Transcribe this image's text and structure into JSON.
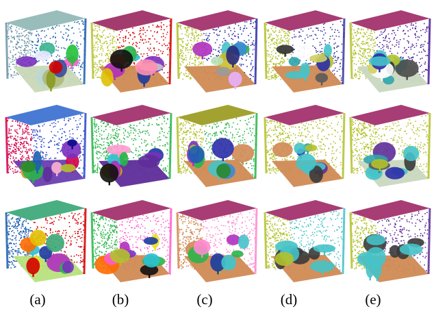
{
  "figure": {
    "captions": [
      "(a)",
      "(b)",
      "(c)",
      "(d)",
      "(e)"
    ],
    "rows": [
      [
        {
          "roof": "#8fb7b4",
          "left": "#6e93a7",
          "right": "#1c5fb0",
          "floor": "#c9d8b8",
          "segments": [
            "#b9d8d4",
            "#38b58f",
            "#ff5cc9",
            "#7a2fbf",
            "#22c03a",
            "#b0b87a",
            "#e8e8ff",
            "#3a4a9a",
            "#8a9a20",
            "#d10000"
          ]
        },
        {
          "roof": "#9c2a63",
          "left": "#b8c431",
          "right": "#d10000",
          "floor": "#cf8a52",
          "segments": [
            "#1c3aa0",
            "#2ec1d3",
            "#2ab54a",
            "#ff6a00",
            "#7a2fbf",
            "#c8c8c8",
            "#b02fbf",
            "#ff90b0",
            "#111111",
            "#e0c000"
          ]
        },
        {
          "roof": "#a02c68",
          "left": "#b3c12c",
          "right": "#2b2ca8",
          "floor": "#d08a54",
          "segments": [
            "#45c3c9",
            "#2ab54a",
            "#b02fbf",
            "#c8b82c",
            "#e8b0ff",
            "#3a8ad8",
            "#d4c440",
            "#9a9a9a",
            "#2a2a7a",
            "#b7e2b7"
          ]
        },
        {
          "roof": "#a02c68",
          "left": "#b3c12c",
          "right": "#3a3aa0",
          "floor": "#d08a54",
          "segments": [
            "#45c3c9",
            "#2ea5ad",
            "#5a5a5a",
            "#b3c12c",
            "#45c3c9",
            "#2b2ca8",
            "#ffffff",
            "#45c3c9",
            "#303030",
            "#d0d060"
          ]
        },
        {
          "roof": "#a02c68",
          "left": "#b3c12c",
          "right": "#4b1f9a",
          "floor": "#c9d8c0",
          "segments": [
            "#45c3c9",
            "#2ea5ad",
            "#4a4a4a",
            "#b3c12c",
            "#45c3c9",
            "#303030",
            "#ffffff",
            "#d0d060",
            "#2b2ca8",
            "#45c3c9"
          ]
        }
      ],
      [
        {
          "roof": "#3a6fd0",
          "left": "#d2004a",
          "right": "#2b48c8",
          "floor": "#6a3fb0",
          "segments": [
            "#d2004a",
            "#e09030",
            "#2ab54a",
            "#7a2fbf",
            "#1c5fb0",
            "#2a8a2a",
            "#ffb0d0",
            "#b3c12c",
            "#0a0a8a",
            "#5e2d9a"
          ]
        },
        {
          "roof": "#a02c68",
          "left": "#2ab54a",
          "right": "#2ab54a",
          "floor": "#5e2d9a",
          "segments": [
            "#b3c12c",
            "#2ec1d3",
            "#1c3aa0",
            "#7a2fbf",
            "#ff9ad0",
            "#2ab54a",
            "#d2a800",
            "#b02fbf",
            "#111111",
            "#5e2d9a"
          ]
        },
        {
          "roof": "#9a9a20",
          "left": "#b3c12c",
          "right": "#2ab54a",
          "floor": "#d08a54",
          "segments": [
            "#45c3c9",
            "#2ab54a",
            "#b02fbf",
            "#3a8ad8",
            "#7a2fbf",
            "#2a8a2a",
            "#d08a54",
            "#b3c12c",
            "#2b2ca8",
            "#1c5fb0"
          ]
        },
        {
          "roof": "#a02c68",
          "left": "#b3c12c",
          "right": "#b3c12c",
          "floor": "#d08a54",
          "segments": [
            "#5e2d9a",
            "#45c3c9",
            "#2ea5ad",
            "#b3c12c",
            "#2b2ca8",
            "#45c3c9",
            "#45c3c9",
            "#3a3a3a",
            "#45c3c9",
            "#d08a54"
          ]
        },
        {
          "roof": "#a02c68",
          "left": "#b3c12c",
          "right": "#b3c12c",
          "floor": "#c9d8c0",
          "segments": [
            "#5e2d9a",
            "#45c3c9",
            "#2ea5ad",
            "#3a3a3a",
            "#45c3c9",
            "#45c3c9",
            "#5a5a5a",
            "#45c3c9",
            "#b3c12c",
            "#2b2ca8"
          ]
        }
      ],
      [
        {
          "roof": "#3aa776",
          "left": "#1c5fb0",
          "right": "#d10000",
          "floor": "#b7e27c",
          "segments": [
            "#2ec1d3",
            "#b02fbf",
            "#e8e020",
            "#2ab54a",
            "#ff6a00",
            "#7a2fbf",
            "#1c3aa0",
            "#e0c000",
            "#d10000",
            "#3aa776"
          ]
        },
        {
          "roof": "#a02c68",
          "left": "#2ab54a",
          "right": "#ff5cc9",
          "floor": "#d08a54",
          "segments": [
            "#7a2fbf",
            "#ff6a00",
            "#e8e020",
            "#2ab54a",
            "#111111",
            "#1c3aa0",
            "#b02fbf",
            "#ff5cc9",
            "#b3c12c",
            "#2ec1d3"
          ]
        },
        {
          "roof": "#a02c68",
          "left": "#d08a54",
          "right": "#ff8ad0",
          "floor": "#d08a54",
          "segments": [
            "#45c3c9",
            "#2ab54a",
            "#b3c12c",
            "#b02fbf",
            "#1c3aa0",
            "#45c3c9",
            "#d08a54",
            "#2ab54a",
            "#ff8ad0",
            "#45c3c9"
          ]
        },
        {
          "roof": "#a02c68",
          "left": "#b3c12c",
          "right": "#45c3c9",
          "floor": "#d08a54",
          "segments": [
            "#45c3c9",
            "#3a3a3a",
            "#45c3c9",
            "#3a3a3a",
            "#45c3c9",
            "#3a3a3a",
            "#45c3c9",
            "#3a3a3a",
            "#45c3c9",
            "#b3c12c"
          ]
        },
        {
          "roof": "#a02c68",
          "left": "#b3c12c",
          "right": "#5e2d9a",
          "floor": "#d08a54",
          "segments": [
            "#45c3c9",
            "#3a3a3a",
            "#45c3c9",
            "#3a3a3a",
            "#45c3c9",
            "#3a3a3a",
            "#45c3c9",
            "#3a3a3a",
            "#45c3c9",
            "#45c3c9"
          ]
        }
      ]
    ]
  }
}
